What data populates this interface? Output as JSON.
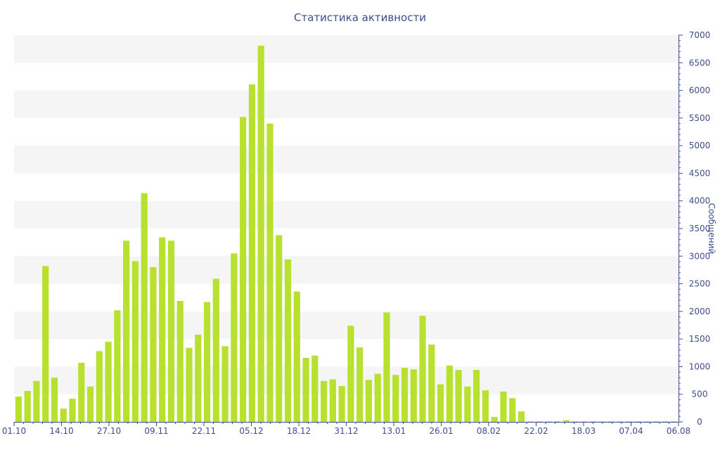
{
  "chart_data": {
    "type": "bar",
    "title": "Статистика активности",
    "ylabel": "Сообщений",
    "xlabel": "",
    "ylim": [
      0,
      7000
    ],
    "ytick_step": 500,
    "yaxis_side": "right",
    "grid": "alternating horizontal bands",
    "bar_color": "#b8e02e",
    "band_color": "#f5f5f5",
    "axis_color": "#3d4e8c",
    "x_tick_labels": [
      "01.10",
      "14.10",
      "27.10",
      "09.11",
      "22.11",
      "05.12",
      "18.12",
      "31.12",
      "13.01",
      "26.01",
      "08.02",
      "22.02",
      "18.03",
      "07.04",
      "06.08"
    ],
    "values": [
      460,
      560,
      740,
      2820,
      800,
      240,
      420,
      1070,
      640,
      1280,
      1450,
      2020,
      3280,
      2910,
      4140,
      2800,
      3340,
      3280,
      2190,
      1340,
      1580,
      2170,
      2590,
      1370,
      3050,
      5520,
      6110,
      6810,
      5400,
      3380,
      2940,
      2360,
      1160,
      1200,
      740,
      770,
      650,
      1740,
      1350,
      760,
      870,
      1980,
      850,
      980,
      950,
      1920,
      1400,
      680,
      1020,
      940,
      640,
      940,
      570,
      90,
      550,
      430,
      190,
      10,
      10,
      10,
      10,
      30,
      5,
      5,
      5,
      5,
      5,
      5,
      5,
      5,
      5,
      5,
      5,
      5
    ]
  }
}
